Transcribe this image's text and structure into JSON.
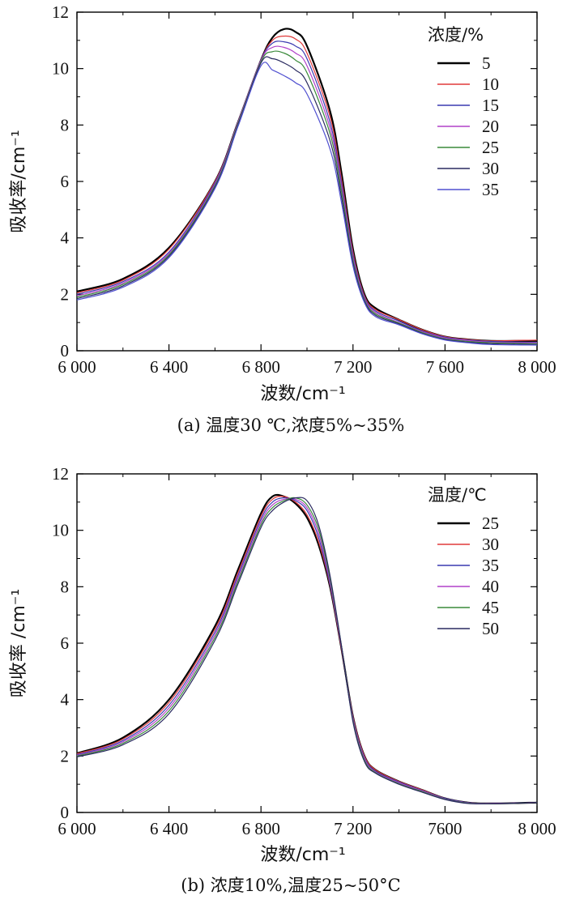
{
  "chart_data": [
    {
      "type": "line",
      "caption": "(a) 温度30 ℃,浓度5%~35%",
      "xlabel": "波数/cm⁻¹",
      "ylabel": "吸收率/cm⁻¹",
      "xlim": [
        6000,
        8000
      ],
      "ylim": [
        0,
        12
      ],
      "xticks": [
        6000,
        6400,
        6800,
        7200,
        7600,
        8000
      ],
      "xtick_labels": [
        "6 000",
        "6 400",
        "6 800",
        "7 200",
        "7 600",
        "8 000"
      ],
      "yticks": [
        0,
        2,
        4,
        6,
        8,
        10,
        12
      ],
      "ytick_labels": [
        "0",
        "2",
        "4",
        "6",
        "8",
        "10",
        "12"
      ],
      "legend_title": "浓度/%",
      "legend_position": "top-right",
      "series": [
        {
          "name": "5",
          "color": "#000000",
          "x": [
            6000,
            6200,
            6400,
            6600,
            6700,
            6800,
            6850,
            6900,
            6950,
            7000,
            7100,
            7150,
            7200,
            7250,
            7300,
            7400,
            7500,
            7600,
            7700,
            7800,
            8000
          ],
          "y": [
            2.1,
            2.55,
            3.65,
            6.0,
            8.1,
            10.3,
            11.1,
            11.4,
            11.3,
            10.8,
            8.5,
            6.3,
            3.6,
            2.0,
            1.5,
            1.1,
            0.75,
            0.5,
            0.4,
            0.35,
            0.35
          ]
        },
        {
          "name": "10",
          "color": "#e03a3a",
          "x": [
            6000,
            6200,
            6400,
            6600,
            6700,
            6800,
            6850,
            6900,
            6950,
            7000,
            7100,
            7150,
            7200,
            7250,
            7300,
            7400,
            7500,
            7600,
            7700,
            7800,
            8000
          ],
          "y": [
            2.05,
            2.5,
            3.6,
            6.0,
            8.1,
            10.3,
            11.0,
            11.15,
            11.05,
            10.55,
            8.3,
            6.1,
            3.5,
            1.95,
            1.45,
            1.1,
            0.75,
            0.5,
            0.4,
            0.35,
            0.38
          ]
        },
        {
          "name": "15",
          "color": "#3a3ab0",
          "x": [
            6000,
            6200,
            6400,
            6600,
            6700,
            6800,
            6850,
            6900,
            6950,
            7000,
            7100,
            7150,
            7200,
            7250,
            7300,
            7400,
            7500,
            7600,
            7700,
            7800,
            8000
          ],
          "y": [
            2.0,
            2.45,
            3.5,
            5.95,
            8.1,
            10.3,
            10.9,
            10.95,
            10.8,
            10.35,
            8.1,
            5.95,
            3.4,
            1.9,
            1.4,
            1.05,
            0.7,
            0.48,
            0.38,
            0.33,
            0.3
          ]
        },
        {
          "name": "20",
          "color": "#b040c8",
          "x": [
            6000,
            6200,
            6400,
            6600,
            6700,
            6800,
            6850,
            6900,
            6950,
            7000,
            7100,
            7150,
            7200,
            7250,
            7300,
            7400,
            7500,
            7600,
            7700,
            7800,
            8000
          ],
          "y": [
            1.95,
            2.4,
            3.45,
            5.9,
            8.1,
            10.3,
            10.75,
            10.75,
            10.55,
            10.1,
            7.9,
            5.8,
            3.3,
            1.85,
            1.35,
            1.0,
            0.68,
            0.45,
            0.36,
            0.3,
            0.28
          ]
        },
        {
          "name": "25",
          "color": "#3a8a3a",
          "x": [
            6000,
            6200,
            6400,
            6600,
            6700,
            6800,
            6850,
            6900,
            6950,
            7000,
            7100,
            7150,
            7200,
            7250,
            7300,
            7400,
            7500,
            7600,
            7700,
            7800,
            8000
          ],
          "y": [
            1.9,
            2.35,
            3.4,
            5.85,
            8.05,
            10.25,
            10.6,
            10.55,
            10.3,
            9.85,
            7.7,
            5.65,
            3.2,
            1.8,
            1.3,
            0.98,
            0.65,
            0.42,
            0.33,
            0.28,
            0.25
          ]
        },
        {
          "name": "30",
          "color": "#2a2a60",
          "x": [
            6000,
            6200,
            6400,
            6600,
            6700,
            6800,
            6850,
            6900,
            6950,
            7000,
            7100,
            7150,
            7200,
            7250,
            7300,
            7400,
            7500,
            7600,
            7700,
            7800,
            8000
          ],
          "y": [
            1.85,
            2.3,
            3.35,
            5.8,
            8.0,
            10.2,
            10.35,
            10.2,
            9.95,
            9.5,
            7.45,
            5.45,
            3.1,
            1.75,
            1.25,
            0.95,
            0.62,
            0.4,
            0.3,
            0.25,
            0.22
          ]
        },
        {
          "name": "35",
          "color": "#5050d0",
          "x": [
            6000,
            6200,
            6400,
            6600,
            6700,
            6800,
            6850,
            6900,
            6950,
            7000,
            7100,
            7150,
            7200,
            7250,
            7300,
            7400,
            7500,
            7600,
            7700,
            7800,
            8000
          ],
          "y": [
            1.8,
            2.25,
            3.3,
            5.75,
            7.95,
            10.1,
            9.95,
            9.75,
            9.5,
            9.1,
            7.15,
            5.25,
            3.0,
            1.7,
            1.2,
            0.92,
            0.6,
            0.38,
            0.28,
            0.22,
            0.2
          ]
        }
      ]
    },
    {
      "type": "line",
      "caption": "(b) 浓度10%,温度25~50°C",
      "xlabel": "波数/cm⁻¹",
      "ylabel": "吸收率 /cm⁻¹",
      "xlim": [
        6000,
        8000
      ],
      "ylim": [
        0,
        12
      ],
      "xticks": [
        6000,
        6400,
        6800,
        7200,
        7600,
        8000
      ],
      "xtick_labels": [
        "6 000",
        "6 400",
        "6 800",
        "7 200",
        "7600",
        "8 000"
      ],
      "yticks": [
        0,
        2,
        4,
        6,
        8,
        10,
        12
      ],
      "ytick_labels": [
        "0",
        "2",
        "4",
        "6",
        "8",
        "10",
        "12"
      ],
      "legend_title": "温度/℃",
      "legend_position": "top-right",
      "series": [
        {
          "name": "25",
          "color": "#000000",
          "x": [
            6000,
            6200,
            6400,
            6600,
            6700,
            6800,
            6850,
            6900,
            6950,
            7000,
            7050,
            7100,
            7150,
            7200,
            7250,
            7300,
            7400,
            7500,
            7600,
            7700,
            7800,
            8000
          ],
          "y": [
            2.1,
            2.65,
            4.0,
            6.6,
            8.6,
            10.6,
            11.2,
            11.2,
            10.95,
            10.45,
            9.5,
            8.0,
            5.8,
            3.4,
            2.0,
            1.5,
            1.1,
            0.8,
            0.5,
            0.35,
            0.32,
            0.35
          ]
        },
        {
          "name": "30",
          "color": "#e03a3a",
          "x": [
            6000,
            6200,
            6400,
            6600,
            6700,
            6800,
            6850,
            6900,
            6950,
            7000,
            7050,
            7100,
            7150,
            7200,
            7250,
            7300,
            7400,
            7500,
            7600,
            7700,
            7800,
            8000
          ],
          "y": [
            2.08,
            2.6,
            3.9,
            6.5,
            8.5,
            10.5,
            11.1,
            11.2,
            11.0,
            10.55,
            9.6,
            8.05,
            5.8,
            3.4,
            2.0,
            1.5,
            1.1,
            0.8,
            0.5,
            0.35,
            0.32,
            0.35
          ]
        },
        {
          "name": "35",
          "color": "#3a3ab0",
          "x": [
            6000,
            6200,
            6400,
            6600,
            6700,
            6800,
            6850,
            6900,
            6950,
            7000,
            7050,
            7100,
            7150,
            7200,
            7250,
            7300,
            7400,
            7500,
            7600,
            7700,
            7800,
            8000
          ],
          "y": [
            2.05,
            2.55,
            3.8,
            6.4,
            8.4,
            10.4,
            11.0,
            11.15,
            11.05,
            10.7,
            9.75,
            8.1,
            5.85,
            3.35,
            1.95,
            1.45,
            1.08,
            0.78,
            0.5,
            0.35,
            0.32,
            0.35
          ]
        },
        {
          "name": "40",
          "color": "#b040c8",
          "x": [
            6000,
            6200,
            6400,
            6600,
            6700,
            6800,
            6850,
            6900,
            6950,
            7000,
            7050,
            7100,
            7150,
            7200,
            7250,
            7300,
            7400,
            7500,
            7600,
            7700,
            7800,
            8000
          ],
          "y": [
            2.02,
            2.5,
            3.7,
            6.3,
            8.3,
            10.3,
            10.9,
            11.1,
            11.1,
            10.8,
            9.9,
            8.2,
            5.85,
            3.3,
            1.9,
            1.42,
            1.05,
            0.76,
            0.48,
            0.34,
            0.32,
            0.35
          ]
        },
        {
          "name": "45",
          "color": "#3a8a3a",
          "x": [
            6000,
            6200,
            6400,
            6600,
            6700,
            6800,
            6850,
            6900,
            6950,
            7000,
            7050,
            7100,
            7150,
            7200,
            7250,
            7300,
            7400,
            7500,
            7600,
            7700,
            7800,
            8000
          ],
          "y": [
            2.0,
            2.45,
            3.6,
            6.2,
            8.2,
            10.2,
            10.8,
            11.05,
            11.15,
            10.9,
            10.05,
            8.3,
            5.9,
            3.25,
            1.85,
            1.4,
            1.02,
            0.74,
            0.47,
            0.33,
            0.31,
            0.35
          ]
        },
        {
          "name": "50",
          "color": "#2a2a60",
          "x": [
            6000,
            6200,
            6400,
            6600,
            6700,
            6800,
            6850,
            6900,
            6950,
            7000,
            7050,
            7100,
            7150,
            7200,
            7250,
            7300,
            7400,
            7500,
            7600,
            7700,
            7800,
            8000
          ],
          "y": [
            1.97,
            2.4,
            3.5,
            6.1,
            8.1,
            10.1,
            10.7,
            11.0,
            11.15,
            11.05,
            10.2,
            8.4,
            5.9,
            3.2,
            1.8,
            1.38,
            1.0,
            0.72,
            0.46,
            0.32,
            0.31,
            0.35
          ]
        }
      ]
    }
  ]
}
